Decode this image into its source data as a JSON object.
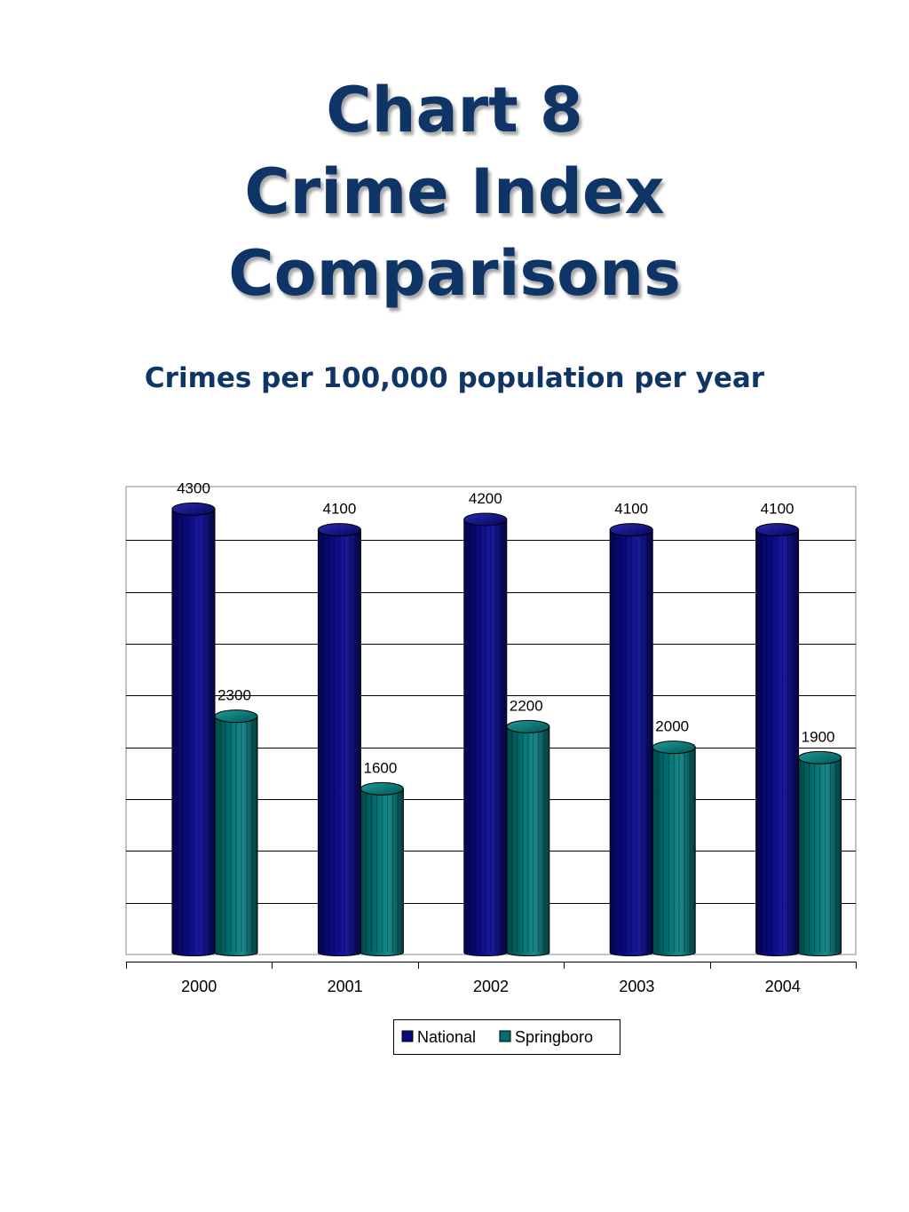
{
  "header": {
    "title_lines": [
      "Chart 8",
      "Crime Index",
      "Comparisons"
    ],
    "subtitle": "Crimes per 100,000 population per year"
  },
  "chart_data": {
    "type": "bar",
    "style": "3d-cylinder",
    "categories": [
      "2000",
      "2001",
      "2002",
      "2003",
      "2004"
    ],
    "series": [
      {
        "name": "National",
        "color": "#0a0a80",
        "values": [
          4300,
          4100,
          4200,
          4100,
          4100
        ],
        "labels": [
          "4300",
          "4100",
          "4200",
          "4100",
          "4100"
        ]
      },
      {
        "name": "Springboro",
        "color": "#007070",
        "values": [
          2300,
          1600,
          2200,
          2000,
          1900
        ],
        "labels": [
          "2300",
          "1600",
          "2200",
          "2000",
          "1900"
        ]
      }
    ],
    "ylim": [
      0,
      4500
    ],
    "y_ticks_visible": false,
    "grid": true,
    "legend_position": "bottom"
  }
}
